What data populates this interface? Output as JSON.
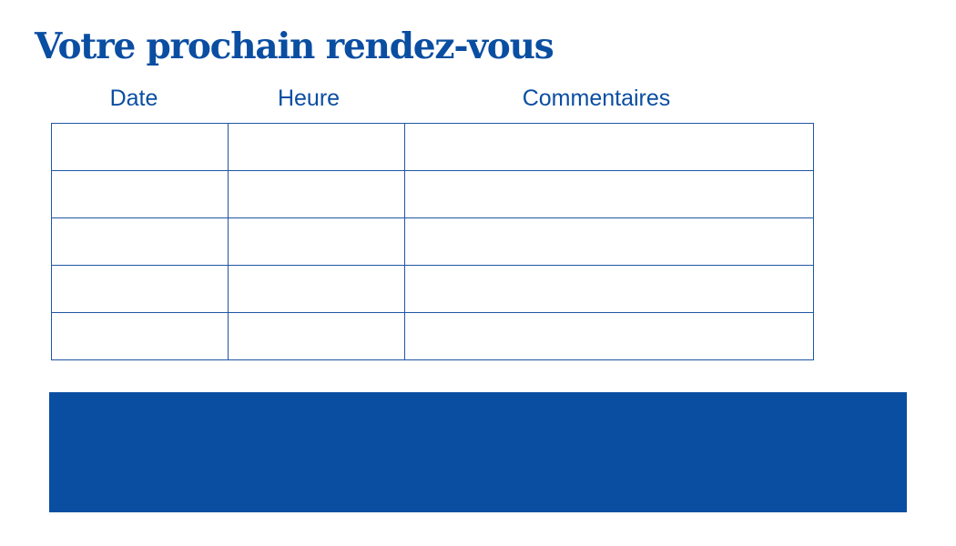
{
  "title": "Votre prochain rendez-vous",
  "table": {
    "columns": [
      "Date",
      "Heure",
      "Commentaires"
    ],
    "rows": [
      [
        "",
        "",
        ""
      ],
      [
        "",
        "",
        ""
      ],
      [
        "",
        "",
        ""
      ],
      [
        "",
        "",
        ""
      ],
      [
        "",
        "",
        ""
      ]
    ]
  },
  "colors": {
    "brand_blue": "#0a4ea2"
  }
}
